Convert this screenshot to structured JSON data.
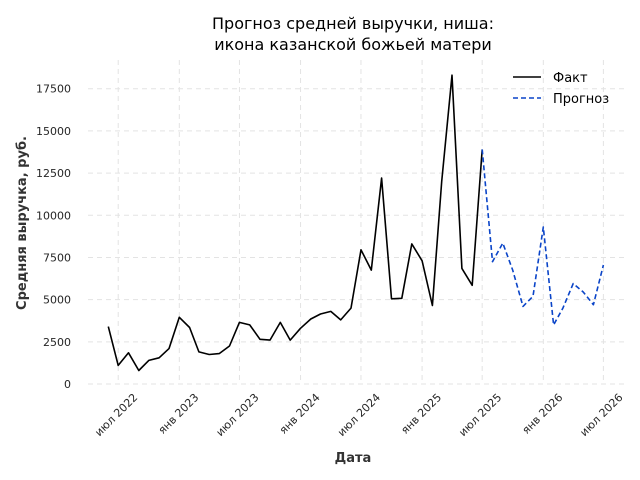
{
  "chart_data": {
    "type": "line",
    "title_lines": [
      "Прогноз средней выручки, ниша:",
      "икона казанской божьей матери"
    ],
    "xlabel": "Дата",
    "ylabel": "Средняя выручка, руб.",
    "ylim": [
      0,
      19200
    ],
    "xlim": [
      "2022-04-01",
      "2026-09-01"
    ],
    "yticks": [
      0,
      2500,
      5000,
      7500,
      10000,
      12500,
      15000,
      17500
    ],
    "ytick_labels": [
      "0",
      "2500",
      "5000",
      "7500",
      "10000",
      "12500",
      "15000",
      "17500"
    ],
    "xticks": [
      "2022-07-01",
      "2023-01-01",
      "2023-07-01",
      "2024-01-01",
      "2024-07-01",
      "2025-01-01",
      "2025-07-01",
      "2026-01-01",
      "2026-07-01"
    ],
    "xtick_labels": [
      "июл 2022",
      "янв 2023",
      "июл 2023",
      "янв 2024",
      "июл 2024",
      "янв 2025",
      "июл 2025",
      "янв 2026",
      "июл 2026"
    ],
    "grid": true,
    "legend_position": "top-right",
    "series": [
      {
        "name": "Факт",
        "color": "#000000",
        "style": "solid",
        "x": [
          "2022-06-01",
          "2022-07-01",
          "2022-08-01",
          "2022-09-01",
          "2022-10-01",
          "2022-11-01",
          "2022-12-01",
          "2023-01-01",
          "2023-02-01",
          "2023-03-01",
          "2023-04-01",
          "2023-05-01",
          "2023-06-01",
          "2023-07-01",
          "2023-08-01",
          "2023-09-01",
          "2023-10-01",
          "2023-11-01",
          "2023-12-01",
          "2024-01-01",
          "2024-02-01",
          "2024-03-01",
          "2024-04-01",
          "2024-05-01",
          "2024-06-01",
          "2024-07-01",
          "2024-08-01",
          "2024-09-01",
          "2024-10-01",
          "2024-11-01",
          "2024-12-01",
          "2025-01-01",
          "2025-02-01",
          "2025-03-01",
          "2025-04-01",
          "2025-05-01",
          "2025-06-01",
          "2025-07-01"
        ],
        "values": [
          3400,
          1100,
          1850,
          800,
          1400,
          1550,
          2100,
          3950,
          3350,
          1900,
          1750,
          1800,
          2250,
          3650,
          3500,
          2650,
          2600,
          3650,
          2600,
          3300,
          3850,
          4150,
          4300,
          3800,
          4500,
          7950,
          6750,
          12200,
          5050,
          5080,
          8300,
          7300,
          4650,
          12000,
          18300,
          6850,
          5850,
          13900
        ]
      },
      {
        "name": "Прогноз",
        "color": "#0a44c8",
        "style": "dashed",
        "x": [
          "2025-07-01",
          "2025-08-01",
          "2025-09-01",
          "2025-10-01",
          "2025-11-01",
          "2025-12-01",
          "2026-01-01",
          "2026-02-01",
          "2026-03-01",
          "2026-04-01",
          "2026-05-01",
          "2026-06-01",
          "2026-07-01",
          "2026-08-01"
        ],
        "values": [
          13900,
          7250,
          8350,
          6750,
          4600,
          5200,
          9300,
          3500,
          4500,
          5950,
          5450,
          4700,
          7050,
          null
        ]
      }
    ]
  }
}
